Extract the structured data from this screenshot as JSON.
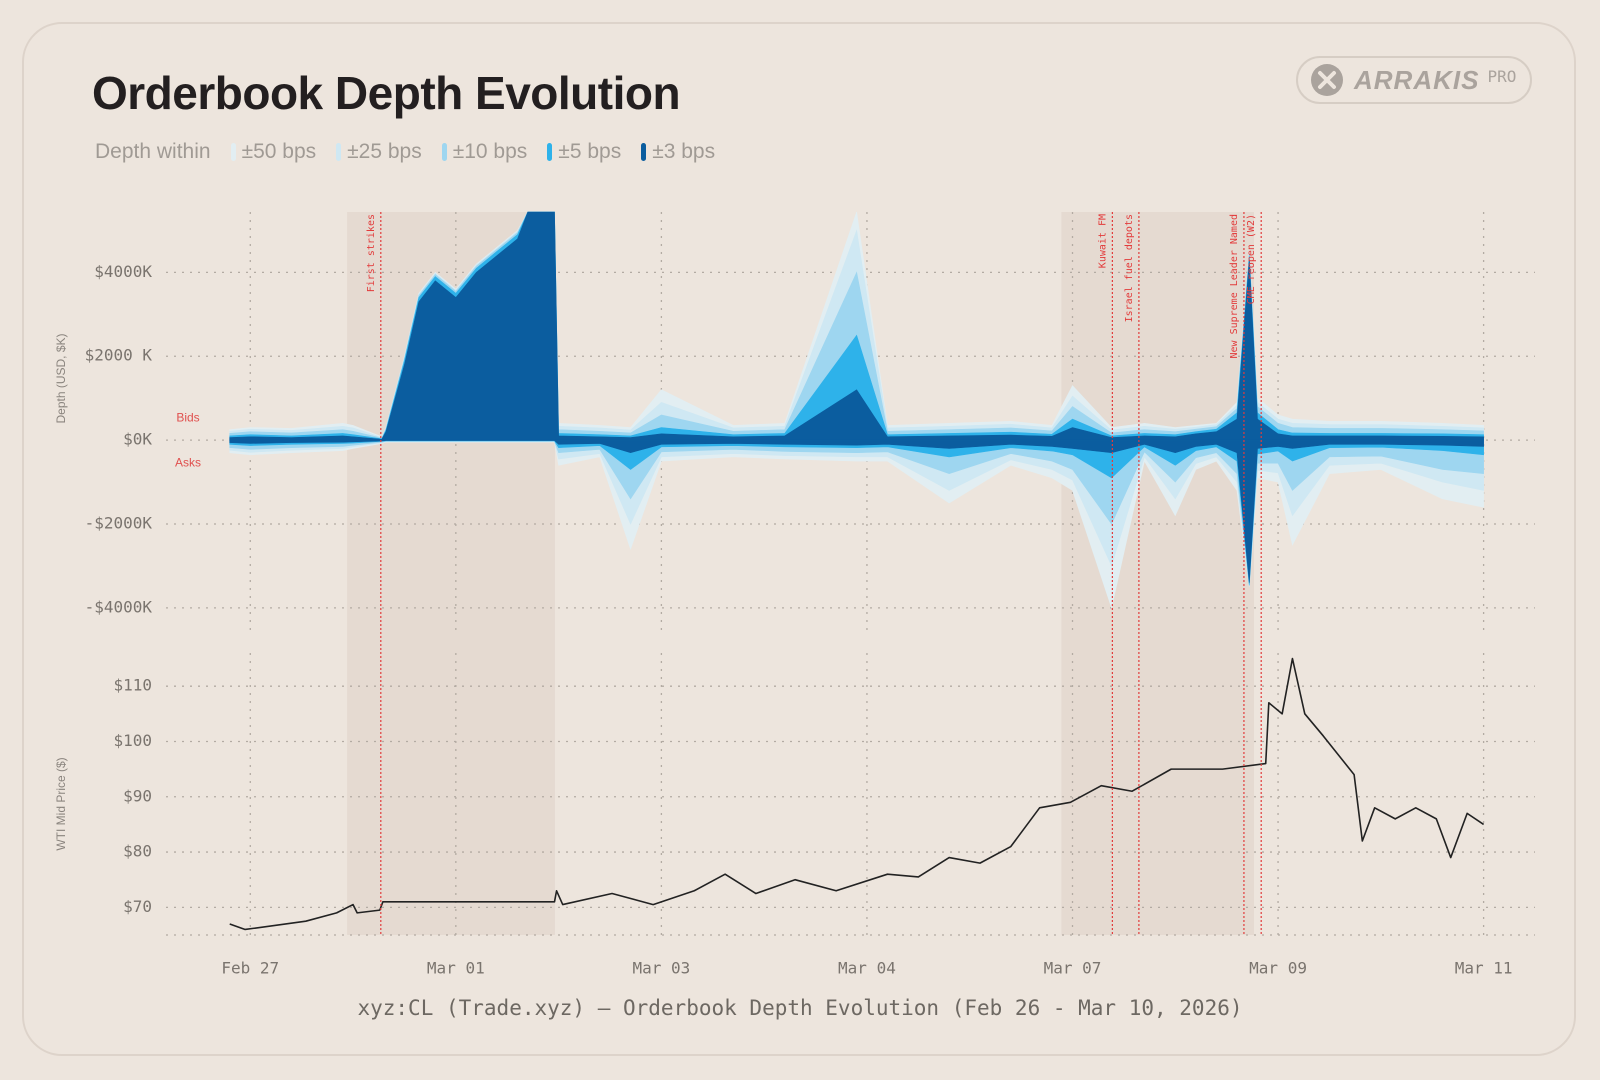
{
  "logo": {
    "name": "ARRAKIS",
    "tier": "PRO"
  },
  "caption": "xyz:CL (Trade.xyz) — Orderbook Depth Evolution (Feb 26 - Mar 10, 2026)",
  "chart_data": [
    {
      "type": "area",
      "title": "Orderbook Depth Evolution",
      "legend_title": "Depth within",
      "y_label": "Depth (USD, $K)",
      "bids_label": "Bids",
      "asks_label": "Asks",
      "xlim": [
        0.59,
        7.25
      ],
      "xticks": [
        1,
        2,
        3,
        4,
        5,
        6,
        7
      ],
      "ylim": [
        -4600,
        5440
      ],
      "yticks": [
        {
          "value": 4000,
          "label": "$4000K"
        },
        {
          "value": 2000,
          "label": "$2000 K"
        },
        {
          "value": 0,
          "label": "$0K"
        },
        {
          "value": -2000,
          "label": "-$2000K"
        },
        {
          "value": -4000,
          "label": "-$4000K"
        }
      ],
      "grid": true,
      "shaded": [
        [
          1.471,
          2.482
        ],
        [
          4.946,
          5.883
        ]
      ],
      "events": [
        {
          "label": "First strikes",
          "x": 1.635
        },
        {
          "label": "Kuwait FM",
          "x": 5.194
        },
        {
          "label": "Israel fuel depots",
          "x": 5.323
        },
        {
          "label": "New Supreme Leader Named",
          "x": 5.834
        },
        {
          "label": "CME reopen (W2)",
          "x": 5.918
        }
      ],
      "x": [
        0.9,
        1.0,
        1.2,
        1.45,
        1.5,
        1.64,
        1.66,
        1.75,
        1.82,
        1.9,
        2.0,
        2.1,
        2.2,
        2.3,
        2.35,
        2.4,
        2.48,
        2.5,
        2.7,
        2.85,
        3.0,
        3.35,
        3.6,
        3.95,
        4.1,
        4.4,
        4.7,
        4.9,
        5.0,
        5.19,
        5.35,
        5.5,
        5.6,
        5.7,
        5.8,
        5.86,
        5.9,
        6.0,
        6.07,
        6.25,
        6.5,
        6.8,
        7.0
      ],
      "series": [
        {
          "name": "±50 bps",
          "color": "#e2eef2",
          "bids": [
            250,
            300,
            280,
            400,
            350,
            80,
            300,
            2000,
            3500,
            4000,
            3600,
            4200,
            4600,
            5000,
            5440,
            5440,
            5440,
            400,
            350,
            300,
            1200,
            350,
            400,
            5440,
            350,
            400,
            450,
            350,
            1300,
            300,
            400,
            300,
            350,
            400,
            900,
            4500,
            1000,
            600,
            500,
            450,
            450,
            400,
            350
          ],
          "asks": [
            -300,
            -350,
            -300,
            -250,
            -200,
            -80,
            -50,
            -50,
            -50,
            -50,
            -50,
            -50,
            -50,
            -50,
            -50,
            -50,
            -50,
            -600,
            -400,
            -2600,
            -500,
            -400,
            -450,
            -500,
            -500,
            -1500,
            -600,
            -900,
            -1200,
            -4000,
            -500,
            -1800,
            -700,
            -500,
            -1200,
            -3500,
            -900,
            -1000,
            -2500,
            -800,
            -700,
            -1400,
            -1600
          ]
        },
        {
          "name": "±25 bps",
          "color": "#cfe8f3",
          "bids": [
            210,
            260,
            230,
            330,
            290,
            65,
            290,
            1980,
            3480,
            3980,
            3580,
            4180,
            4580,
            4980,
            5440,
            5440,
            5440,
            330,
            290,
            240,
            900,
            290,
            330,
            5000,
            290,
            330,
            380,
            290,
            1050,
            240,
            330,
            260,
            310,
            370,
            830,
            4480,
            900,
            500,
            400,
            370,
            370,
            330,
            290
          ],
          "asks": [
            -240,
            -290,
            -240,
            -200,
            -160,
            -65,
            -40,
            -40,
            -40,
            -40,
            -40,
            -40,
            -40,
            -40,
            -40,
            -40,
            -40,
            -450,
            -320,
            -2000,
            -400,
            -320,
            -370,
            -400,
            -400,
            -1200,
            -470,
            -700,
            -950,
            -3000,
            -400,
            -1400,
            -560,
            -400,
            -1000,
            -3490,
            -720,
            -780,
            -1800,
            -600,
            -550,
            -1000,
            -1200
          ]
        },
        {
          "name": "±10 bps",
          "color": "#9ed6f0",
          "bids": [
            160,
            200,
            170,
            250,
            210,
            50,
            270,
            1950,
            3450,
            3950,
            3550,
            4150,
            4550,
            4950,
            5440,
            5440,
            5440,
            250,
            210,
            170,
            600,
            210,
            250,
            4000,
            210,
            250,
            290,
            220,
            800,
            170,
            250,
            200,
            260,
            320,
            750,
            4450,
            800,
            400,
            300,
            280,
            280,
            250,
            220
          ],
          "asks": [
            -180,
            -220,
            -180,
            -150,
            -120,
            -50,
            -30,
            -30,
            -30,
            -30,
            -30,
            -30,
            -30,
            -30,
            -30,
            -30,
            -30,
            -300,
            -220,
            -1400,
            -280,
            -220,
            -270,
            -300,
            -280,
            -800,
            -320,
            -500,
            -700,
            -2000,
            -280,
            -1000,
            -420,
            -300,
            -800,
            -3480,
            -550,
            -550,
            -1200,
            -400,
            -380,
            -700,
            -800
          ]
        },
        {
          "name": "±5 bps",
          "color": "#2eb2ea",
          "bids": [
            100,
            130,
            100,
            160,
            130,
            30,
            240,
            1900,
            3400,
            3900,
            3500,
            4100,
            4500,
            4900,
            5440,
            5440,
            5440,
            160,
            130,
            100,
            300,
            130,
            160,
            2500,
            130,
            160,
            190,
            140,
            500,
            100,
            160,
            130,
            200,
            260,
            650,
            4400,
            650,
            250,
            170,
            160,
            160,
            150,
            130
          ],
          "asks": [
            -100,
            -130,
            -100,
            -80,
            -70,
            -30,
            -20,
            -20,
            -20,
            -20,
            -20,
            -20,
            -20,
            -20,
            -20,
            -20,
            -20,
            -180,
            -130,
            -700,
            -160,
            -130,
            -160,
            -180,
            -160,
            -400,
            -180,
            -260,
            -350,
            -900,
            -160,
            -600,
            -250,
            -160,
            -500,
            -3450,
            -330,
            -260,
            -500,
            -180,
            -170,
            -250,
            -350
          ]
        },
        {
          "name": "±3 bps",
          "color": "#0b5d9f",
          "bids": [
            60,
            80,
            60,
            100,
            80,
            20,
            200,
            1800,
            3300,
            3800,
            3400,
            4000,
            4400,
            4800,
            5440,
            5440,
            5440,
            100,
            80,
            60,
            150,
            80,
            100,
            1200,
            80,
            100,
            120,
            90,
            300,
            60,
            100,
            80,
            150,
            200,
            500,
            4300,
            500,
            150,
            100,
            100,
            100,
            90,
            80
          ],
          "asks": [
            -60,
            -80,
            -60,
            -50,
            -40,
            -20,
            -10,
            -10,
            -10,
            -10,
            -10,
            -10,
            -10,
            -10,
            -10,
            -10,
            -10,
            -100,
            -80,
            -300,
            -100,
            -80,
            -100,
            -120,
            -100,
            -200,
            -100,
            -150,
            -200,
            -300,
            -100,
            -300,
            -150,
            -100,
            -300,
            -3400,
            -200,
            -150,
            -200,
            -100,
            -100,
            -120,
            -150
          ]
        }
      ]
    },
    {
      "type": "line",
      "y_label": "WTI Mid Price ($)",
      "color": "#222222",
      "xlim": [
        0.59,
        7.25
      ],
      "xticks": [
        {
          "value": 1,
          "label": "Feb 27"
        },
        {
          "value": 2,
          "label": "Mar 01"
        },
        {
          "value": 3,
          "label": "Mar 03"
        },
        {
          "value": 4,
          "label": "Mar 04"
        },
        {
          "value": 5,
          "label": "Mar 07"
        },
        {
          "value": 6,
          "label": "Mar 09"
        },
        {
          "value": 7,
          "label": "Mar 11"
        }
      ],
      "ylim": [
        65,
        116
      ],
      "yticks": [
        {
          "value": 70,
          "label": "$70"
        },
        {
          "value": 80,
          "label": "$80"
        },
        {
          "value": 90,
          "label": "$90"
        },
        {
          "value": 100,
          "label": "$100"
        },
        {
          "value": 110,
          "label": "$110"
        }
      ],
      "grid": true,
      "x": [
        0.9,
        0.975,
        1.27,
        1.42,
        1.5,
        1.52,
        1.63,
        1.645,
        2.48,
        2.49,
        2.52,
        2.76,
        2.96,
        3.16,
        3.31,
        3.46,
        3.65,
        3.85,
        4.1,
        4.25,
        4.4,
        4.55,
        4.7,
        4.84,
        4.99,
        5.14,
        5.29,
        5.48,
        5.73,
        5.94,
        5.955,
        6.02,
        6.07,
        6.13,
        6.22,
        6.37,
        6.41,
        6.47,
        6.57,
        6.67,
        6.77,
        6.84,
        6.92,
        7.0
      ],
      "values": [
        67,
        66,
        67.5,
        69,
        70.5,
        69,
        69.5,
        71,
        71,
        73,
        70.5,
        72.5,
        70.5,
        73,
        76,
        72.5,
        75,
        73,
        76,
        75.5,
        79,
        78,
        81,
        88,
        89,
        92,
        91,
        95,
        95,
        96,
        107,
        105,
        115,
        105,
        101,
        94,
        82,
        88,
        86,
        88,
        86,
        79,
        87,
        85
      ]
    }
  ]
}
